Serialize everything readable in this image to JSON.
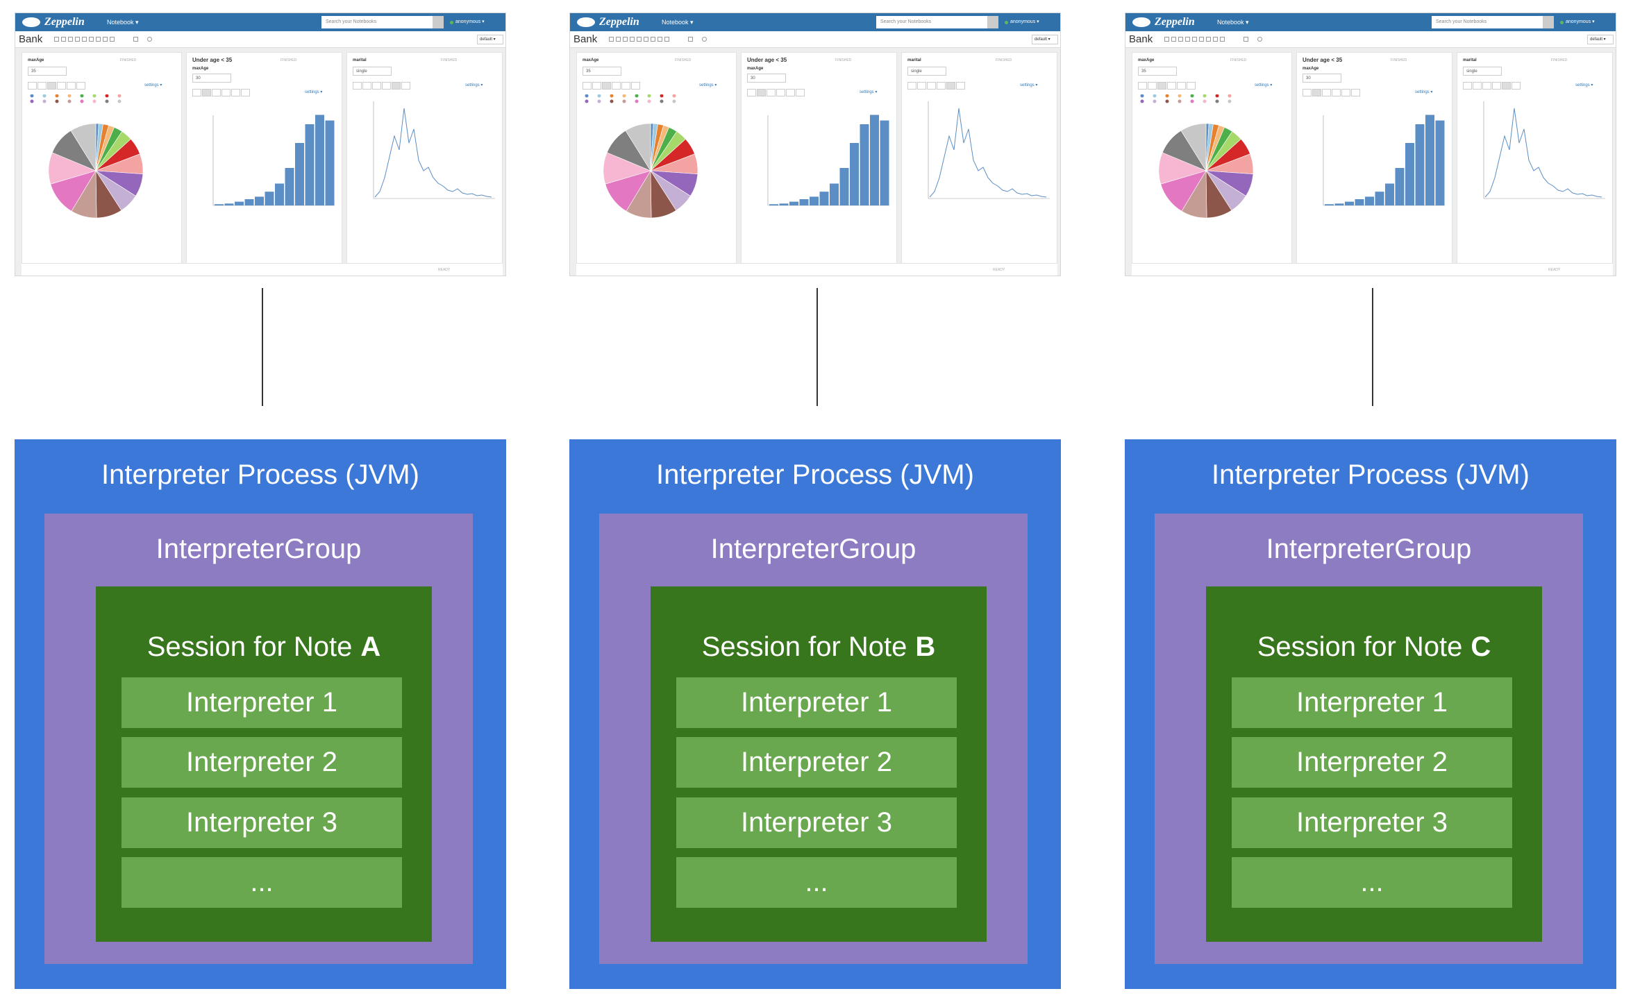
{
  "columns": [
    {
      "screenshot": {
        "brand": "Zeppelin",
        "menu": "Notebook ▾",
        "search": "Search your Notebooks",
        "user": "anonymous ▾",
        "note_title": "Bank",
        "interpreter_set": "default ▾",
        "paragraphs": [
          {
            "title": "maxAge",
            "input": "35",
            "status": "FINISHED",
            "settings": "settings ▾"
          },
          {
            "title": "Under age < 35",
            "field": "maxAge",
            "input": "30",
            "status": "FINISHED",
            "settings": "settings ▾"
          },
          {
            "title": "marital",
            "input": "single",
            "status": "FINISHED",
            "settings": "settings ▾"
          }
        ],
        "footer_status": "READY"
      },
      "process": "Interpreter Process (JVM)",
      "group": "InterpreterGroup",
      "session": {
        "text": "Session for Note",
        "note": "A"
      },
      "interpreters": [
        "Interpreter 1",
        "Interpreter 2",
        "Interpreter 3",
        "..."
      ]
    },
    {
      "screenshot": {
        "brand": "Zeppelin",
        "menu": "Notebook ▾",
        "search": "Search your Notebooks",
        "user": "anonymous ▾",
        "note_title": "Bank",
        "interpreter_set": "default ▾",
        "paragraphs": [
          {
            "title": "maxAge",
            "input": "35",
            "status": "FINISHED",
            "settings": "settings ▾"
          },
          {
            "title": "Under age < 35",
            "field": "maxAge",
            "input": "30",
            "status": "FINISHED",
            "settings": "settings ▾"
          },
          {
            "title": "marital",
            "input": "single",
            "status": "FINISHED",
            "settings": "settings ▾"
          }
        ],
        "footer_status": "READY"
      },
      "process": "Interpreter Process (JVM)",
      "group": "InterpreterGroup",
      "session": {
        "text": "Session for Note",
        "note": "B"
      },
      "interpreters": [
        "Interpreter 1",
        "Interpreter 2",
        "Interpreter 3",
        "..."
      ]
    },
    {
      "screenshot": {
        "brand": "Zeppelin",
        "menu": "Notebook ▾",
        "search": "Search your Notebooks",
        "user": "anonymous ▾",
        "note_title": "Bank",
        "interpreter_set": "default ▾",
        "paragraphs": [
          {
            "title": "maxAge",
            "input": "35",
            "status": "FINISHED",
            "settings": "settings ▾"
          },
          {
            "title": "Under age < 35",
            "field": "maxAge",
            "input": "30",
            "status": "FINISHED",
            "settings": "settings ▾"
          },
          {
            "title": "marital",
            "input": "single",
            "status": "FINISHED",
            "settings": "settings ▾"
          }
        ],
        "footer_status": "READY"
      },
      "process": "Interpreter Process (JVM)",
      "group": "InterpreterGroup",
      "session": {
        "text": "Session for Note",
        "note": "C"
      },
      "interpreters": [
        "Interpreter 1",
        "Interpreter 2",
        "Interpreter 3",
        "..."
      ]
    }
  ]
}
